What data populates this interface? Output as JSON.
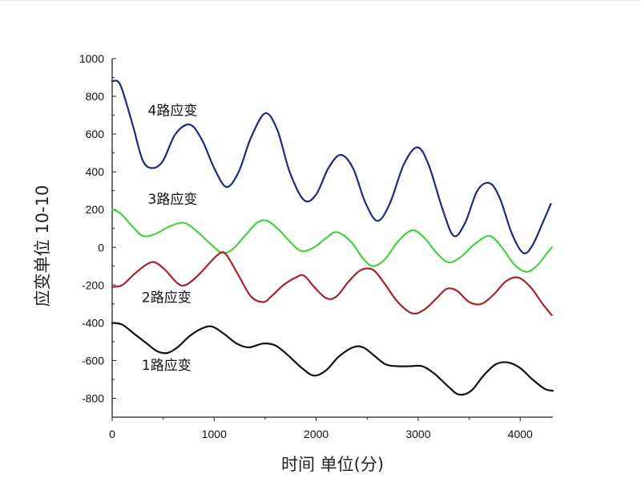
{
  "chart_data": {
    "type": "line",
    "title": "",
    "xlabel": "时间 单位(分)",
    "ylabel": "应变单位 10-10",
    "xlim": [
      0,
      4320
    ],
    "ylim": [
      -900,
      1000
    ],
    "x_ticks": [
      0,
      1000,
      2000,
      3000,
      4000
    ],
    "y_ticks": [
      -800,
      -600,
      -400,
      -200,
      0,
      200,
      400,
      600,
      800,
      1000
    ],
    "grid": false,
    "series": [
      {
        "name": "4路应变",
        "color": "#1f2a7a",
        "label_at": [
          350,
          700
        ],
        "points": [
          [
            0,
            880
          ],
          [
            80,
            860
          ],
          [
            200,
            650
          ],
          [
            300,
            460
          ],
          [
            400,
            420
          ],
          [
            500,
            460
          ],
          [
            620,
            600
          ],
          [
            760,
            650
          ],
          [
            880,
            570
          ],
          [
            1000,
            420
          ],
          [
            1120,
            320
          ],
          [
            1240,
            400
          ],
          [
            1360,
            580
          ],
          [
            1500,
            710
          ],
          [
            1620,
            620
          ],
          [
            1740,
            400
          ],
          [
            1880,
            250
          ],
          [
            2000,
            280
          ],
          [
            2120,
            420
          ],
          [
            2240,
            490
          ],
          [
            2360,
            420
          ],
          [
            2480,
            240
          ],
          [
            2600,
            140
          ],
          [
            2720,
            230
          ],
          [
            2860,
            440
          ],
          [
            2990,
            530
          ],
          [
            3100,
            440
          ],
          [
            3240,
            200
          ],
          [
            3350,
            60
          ],
          [
            3460,
            130
          ],
          [
            3580,
            300
          ],
          [
            3700,
            340
          ],
          [
            3800,
            260
          ],
          [
            3920,
            70
          ],
          [
            4030,
            -30
          ],
          [
            4120,
            10
          ],
          [
            4220,
            130
          ],
          [
            4300,
            230
          ]
        ]
      },
      {
        "name": "3路应变",
        "color": "#44d23d",
        "label_at": [
          350,
          230
        ],
        "points": [
          [
            0,
            200
          ],
          [
            80,
            180
          ],
          [
            200,
            110
          ],
          [
            300,
            60
          ],
          [
            420,
            70
          ],
          [
            560,
            110
          ],
          [
            700,
            130
          ],
          [
            820,
            90
          ],
          [
            960,
            20
          ],
          [
            1080,
            -30
          ],
          [
            1180,
            -10
          ],
          [
            1300,
            60
          ],
          [
            1420,
            130
          ],
          [
            1520,
            140
          ],
          [
            1640,
            90
          ],
          [
            1760,
            20
          ],
          [
            1860,
            -20
          ],
          [
            1980,
            0
          ],
          [
            2100,
            50
          ],
          [
            2200,
            80
          ],
          [
            2340,
            30
          ],
          [
            2460,
            -60
          ],
          [
            2560,
            -100
          ],
          [
            2680,
            -60
          ],
          [
            2800,
            30
          ],
          [
            2940,
            90
          ],
          [
            3060,
            50
          ],
          [
            3180,
            -30
          ],
          [
            3300,
            -80
          ],
          [
            3420,
            -50
          ],
          [
            3560,
            20
          ],
          [
            3700,
            60
          ],
          [
            3820,
            0
          ],
          [
            3940,
            -90
          ],
          [
            4060,
            -130
          ],
          [
            4160,
            -100
          ],
          [
            4250,
            -40
          ],
          [
            4310,
            0
          ]
        ]
      },
      {
        "name": "2路应变",
        "color": "#a8232d",
        "label_at": [
          290,
          -290
        ],
        "points": [
          [
            0,
            -210
          ],
          [
            100,
            -200
          ],
          [
            220,
            -140
          ],
          [
            340,
            -90
          ],
          [
            420,
            -80
          ],
          [
            520,
            -120
          ],
          [
            640,
            -190
          ],
          [
            720,
            -200
          ],
          [
            840,
            -150
          ],
          [
            960,
            -80
          ],
          [
            1060,
            -30
          ],
          [
            1120,
            -40
          ],
          [
            1240,
            -150
          ],
          [
            1360,
            -260
          ],
          [
            1480,
            -290
          ],
          [
            1560,
            -260
          ],
          [
            1680,
            -200
          ],
          [
            1800,
            -160
          ],
          [
            1880,
            -150
          ],
          [
            1980,
            -210
          ],
          [
            2100,
            -270
          ],
          [
            2200,
            -260
          ],
          [
            2320,
            -180
          ],
          [
            2440,
            -120
          ],
          [
            2560,
            -120
          ],
          [
            2680,
            -200
          ],
          [
            2800,
            -290
          ],
          [
            2940,
            -350
          ],
          [
            3060,
            -330
          ],
          [
            3180,
            -270
          ],
          [
            3280,
            -220
          ],
          [
            3380,
            -230
          ],
          [
            3500,
            -290
          ],
          [
            3620,
            -300
          ],
          [
            3740,
            -250
          ],
          [
            3860,
            -180
          ],
          [
            3980,
            -160
          ],
          [
            4100,
            -210
          ],
          [
            4220,
            -300
          ],
          [
            4310,
            -360
          ]
        ]
      },
      {
        "name": "1路应变",
        "color": "#111111",
        "label_at": [
          290,
          -650
        ],
        "points": [
          [
            0,
            -400
          ],
          [
            100,
            -410
          ],
          [
            220,
            -460
          ],
          [
            340,
            -510
          ],
          [
            440,
            -550
          ],
          [
            540,
            -560
          ],
          [
            640,
            -530
          ],
          [
            760,
            -470
          ],
          [
            880,
            -430
          ],
          [
            980,
            -420
          ],
          [
            1100,
            -460
          ],
          [
            1220,
            -510
          ],
          [
            1340,
            -530
          ],
          [
            1480,
            -510
          ],
          [
            1600,
            -520
          ],
          [
            1720,
            -570
          ],
          [
            1860,
            -640
          ],
          [
            1980,
            -680
          ],
          [
            2100,
            -650
          ],
          [
            2220,
            -580
          ],
          [
            2360,
            -530
          ],
          [
            2460,
            -530
          ],
          [
            2560,
            -570
          ],
          [
            2680,
            -620
          ],
          [
            2800,
            -630
          ],
          [
            2920,
            -630
          ],
          [
            3040,
            -630
          ],
          [
            3160,
            -670
          ],
          [
            3300,
            -740
          ],
          [
            3400,
            -780
          ],
          [
            3520,
            -760
          ],
          [
            3640,
            -680
          ],
          [
            3760,
            -620
          ],
          [
            3880,
            -610
          ],
          [
            4000,
            -640
          ],
          [
            4120,
            -700
          ],
          [
            4240,
            -750
          ],
          [
            4320,
            -760
          ]
        ]
      }
    ]
  }
}
